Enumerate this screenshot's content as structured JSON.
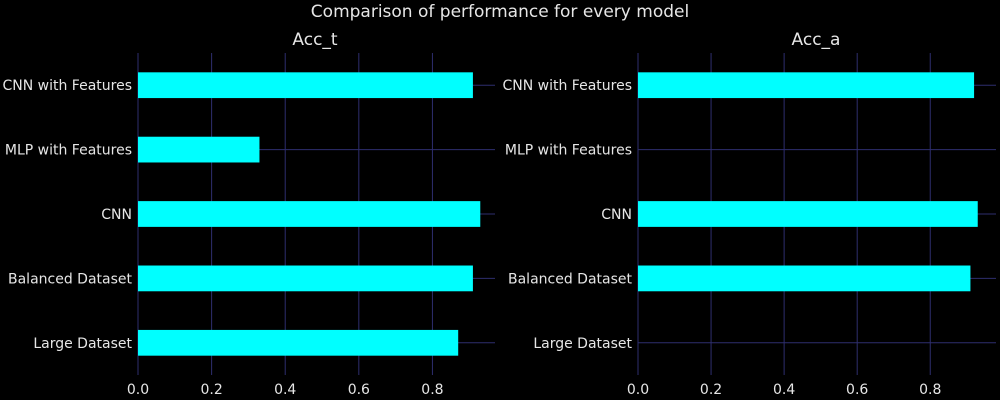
{
  "figure": {
    "suptitle": "Comparison of performance for every model",
    "background": "#000000",
    "bar_color": "#00ffff",
    "grid_color": "#2e2e6e",
    "text_color": "#e6e6e6"
  },
  "chart_data": [
    {
      "type": "bar",
      "orientation": "horizontal",
      "title": "Acc_t",
      "categories": [
        "Large Dataset",
        "Balanced Dataset",
        "CNN",
        "MLP with Features",
        "CNN with Features"
      ],
      "values": [
        0.87,
        0.91,
        0.93,
        0.33,
        0.91
      ],
      "xlim": [
        0,
        0.97
      ],
      "xticks": [
        "0.0",
        "0.2",
        "0.4",
        "0.6",
        "0.8"
      ],
      "xlabel": "",
      "ylabel": "",
      "grid": true
    },
    {
      "type": "bar",
      "orientation": "horizontal",
      "title": "Acc_a",
      "categories": [
        "Large Dataset",
        "Balanced Dataset",
        "CNN",
        "MLP with Features",
        "CNN with Features"
      ],
      "values": [
        0,
        0.91,
        0.93,
        0,
        0.92
      ],
      "xlim": [
        0,
        0.98
      ],
      "xticks": [
        "0.0",
        "0.2",
        "0.4",
        "0.6",
        "0.8"
      ],
      "xlabel": "",
      "ylabel": "",
      "grid": true
    }
  ]
}
